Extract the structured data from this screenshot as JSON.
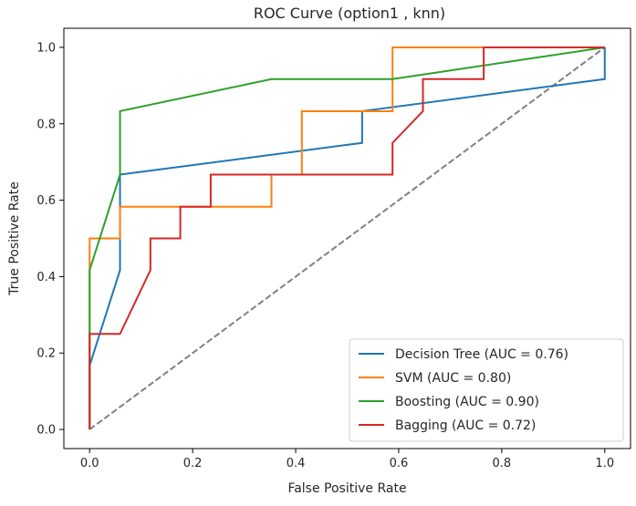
{
  "chart_data": {
    "type": "line",
    "title": "ROC Curve (option1 , knn)",
    "xlabel": "False Positive Rate",
    "ylabel": "True Positive Rate",
    "xlim": [
      -0.05,
      1.05
    ],
    "ylim": [
      -0.05,
      1.05
    ],
    "xticks": [
      "0.0",
      "0.2",
      "0.4",
      "0.6",
      "0.8",
      "1.0"
    ],
    "yticks": [
      "0.0",
      "0.2",
      "0.4",
      "0.6",
      "0.8",
      "1.0"
    ],
    "grid": false,
    "legend_position": "lower-right",
    "diagonal": {
      "x": [
        0,
        1
      ],
      "y": [
        0,
        1
      ],
      "color": "#808080",
      "style": "dashed"
    },
    "series": [
      {
        "name": "Decision Tree (AUC = 0.76)",
        "color": "#1f77b4",
        "x": [
          0,
          0,
          0.059,
          0.059,
          0.529,
          0.529,
          1.0,
          1.0
        ],
        "y": [
          0,
          0.167,
          0.417,
          0.667,
          0.75,
          0.833,
          0.917,
          1.0
        ]
      },
      {
        "name": "SVM (AUC = 0.80)",
        "color": "#ff7f0e",
        "x": [
          0,
          0,
          0,
          0.059,
          0.059,
          0.353,
          0.353,
          0.412,
          0.412,
          0.588,
          0.588,
          1.0
        ],
        "y": [
          0,
          0.083,
          0.5,
          0.5,
          0.583,
          0.583,
          0.667,
          0.667,
          0.833,
          0.833,
          1.0,
          1.0
        ]
      },
      {
        "name": "Boosting (AUC = 0.90)",
        "color": "#2ca02c",
        "x": [
          0,
          0,
          0.059,
          0.059,
          0.353,
          0.588,
          1.0
        ],
        "y": [
          0,
          0.417,
          0.667,
          0.833,
          0.917,
          0.917,
          1.0
        ]
      },
      {
        "name": "Bagging (AUC = 0.72)",
        "color": "#d62728",
        "x": [
          0,
          0,
          0.059,
          0.118,
          0.118,
          0.176,
          0.176,
          0.235,
          0.235,
          0.588,
          0.588,
          0.647,
          0.647,
          0.765,
          0.765,
          1.0
        ],
        "y": [
          0,
          0.25,
          0.25,
          0.417,
          0.5,
          0.5,
          0.583,
          0.583,
          0.667,
          0.667,
          0.75,
          0.833,
          0.917,
          0.917,
          1.0,
          1.0
        ]
      }
    ]
  }
}
